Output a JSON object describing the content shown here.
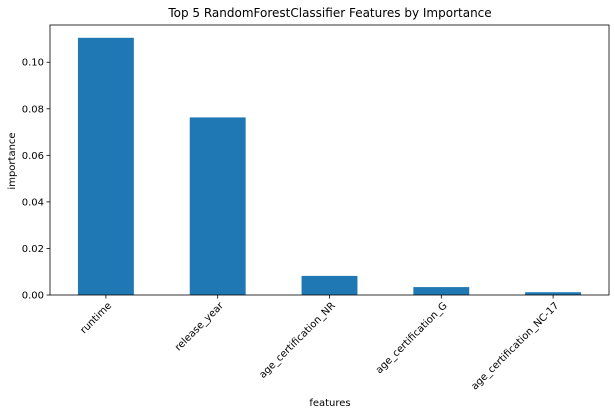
{
  "chart_data": {
    "type": "bar",
    "title": "Top 5 RandomForestClassifier Features by Importance",
    "xlabel": "features",
    "ylabel": "importance",
    "categories": [
      "runtime",
      "release_year",
      "age_certification_NR",
      "age_certification_G",
      "age_certification_NC-17"
    ],
    "values": [
      0.1105,
      0.0763,
      0.0082,
      0.0034,
      0.0012
    ],
    "ylim": [
      0,
      0.116
    ],
    "yticks": [
      0.0,
      0.02,
      0.04,
      0.06,
      0.08,
      0.1
    ],
    "ytick_labels": [
      "0.00",
      "0.02",
      "0.04",
      "0.06",
      "0.08",
      "0.10"
    ],
    "grid": false,
    "legend": "none",
    "bar_color": "#1f77b4"
  }
}
